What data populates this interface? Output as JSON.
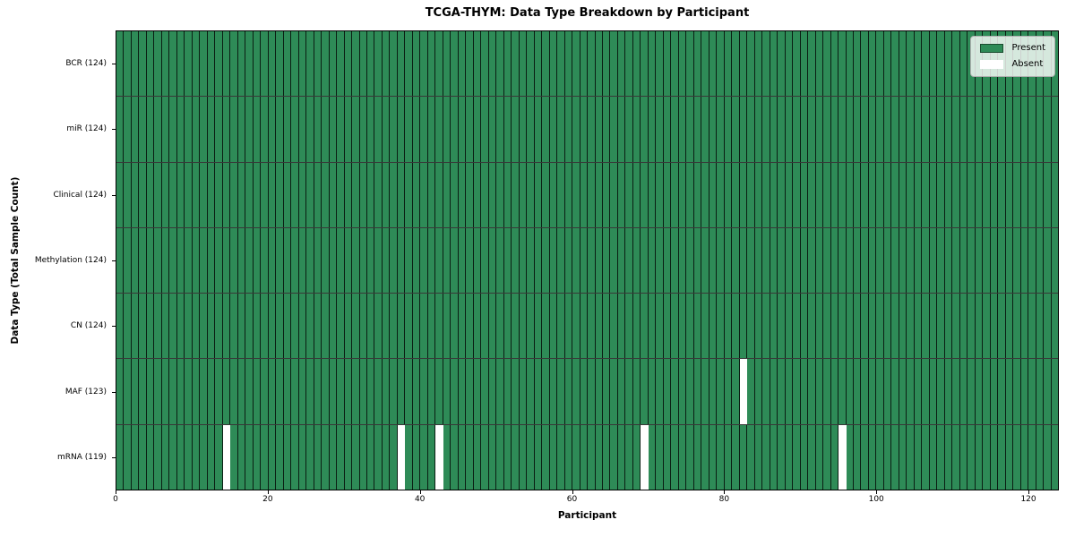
{
  "chart_data": {
    "type": "heatmap",
    "title": "TCGA-THYM: Data Type Breakdown by Participant",
    "xlabel": "Participant",
    "ylabel": "Data Type (Total Sample Count)",
    "x_ticks": [
      0,
      20,
      40,
      60,
      80,
      100,
      120
    ],
    "xlim": [
      0,
      124
    ],
    "n_participants": 124,
    "grid": "cell-borders",
    "legend_position": "upper right",
    "legend": [
      {
        "label": "Present",
        "color": "#2e8b57",
        "value": "present"
      },
      {
        "label": "Absent",
        "color": "#ffffff",
        "value": "absent"
      }
    ],
    "colors": {
      "present": "#2e8b57",
      "absent": "#ffffff",
      "cell_edge": "#000000",
      "plot_border": "#000000"
    },
    "rows": [
      {
        "label": "BCR (124)",
        "data_type": "bcr",
        "present_count": 124,
        "absent_participants": []
      },
      {
        "label": "miR (124)",
        "data_type": "mir",
        "present_count": 124,
        "absent_participants": []
      },
      {
        "label": "Clinical (124)",
        "data_type": "clinical",
        "present_count": 124,
        "absent_participants": []
      },
      {
        "label": "Methylation (124)",
        "data_type": "methylation",
        "present_count": 124,
        "absent_participants": []
      },
      {
        "label": "CN (124)",
        "data_type": "cn",
        "present_count": 124,
        "absent_participants": []
      },
      {
        "label": "MAF (123)",
        "data_type": "maf",
        "present_count": 123,
        "absent_participants": [
          82
        ]
      },
      {
        "label": "mRNA (119)",
        "data_type": "mrna",
        "present_count": 119,
        "absent_participants": [
          14,
          37,
          42,
          69,
          95
        ]
      }
    ]
  }
}
